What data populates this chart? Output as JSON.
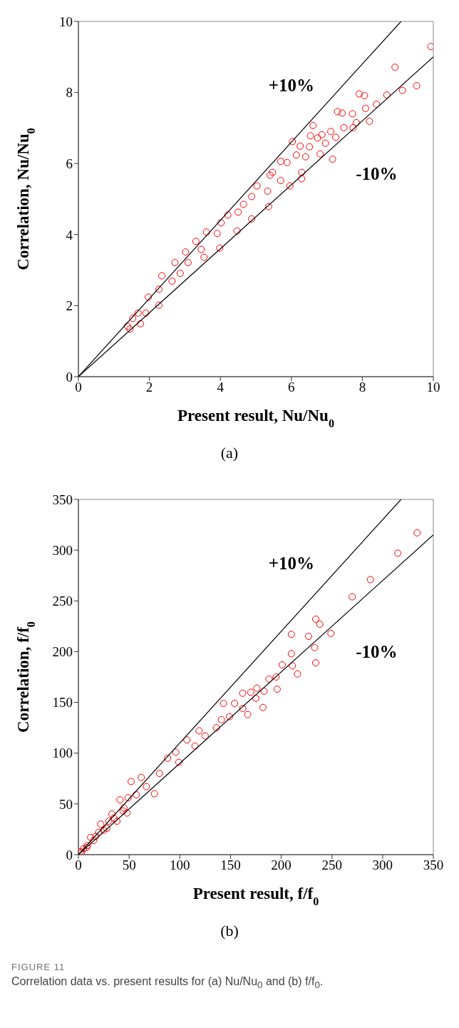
{
  "chart_data": [
    {
      "type": "scatter",
      "xlabel": "Present result, Nu/Nu$_{0}$",
      "ylabel": "Correlation, Nu/Nu$_{0}$",
      "xlim": [
        0,
        10
      ],
      "ylim": [
        0,
        10
      ],
      "xticks": [
        0,
        2,
        4,
        6,
        8,
        10
      ],
      "yticks": [
        0,
        2,
        4,
        6,
        8,
        10
      ],
      "marker": "circle",
      "annotations": [
        "+10%",
        "-10%",
        "(a)"
      ],
      "series": [
        {
          "color": "#ff0000",
          "x": [
            9.93,
            8.92,
            9.53,
            9.13,
            7.91,
            8.06,
            8.69,
            8.4,
            8.09,
            7.3,
            7.43,
            7.72,
            8.2,
            7.83,
            7.48,
            7.74,
            6.61,
            7.11,
            7.25,
            6.54,
            6.86,
            6.74,
            6.96,
            6.03,
            6.25,
            6.51,
            6.81,
            7.16,
            6.14,
            6.4,
            5.7,
            5.88,
            6.29,
            6.29,
            5.96,
            5.47,
            5.4,
            5.7,
            5.03,
            5.33,
            5.36,
            4.88,
            4.65,
            4.88,
            4.5,
            4.21,
            4.47,
            4.02,
            3.91,
            3.98,
            3.61,
            3.31,
            3.46,
            3.54,
            3.02,
            3.09,
            2.72,
            2.87,
            2.64,
            2.35,
            2.27,
            2.27,
            1.97,
            1.9,
            1.68,
            1.53,
            1.45,
            1.38,
            1.75
          ],
          "values": [
            9.29,
            8.71,
            8.19,
            8.06,
            7.96,
            7.91,
            7.93,
            7.67,
            7.55,
            7.46,
            7.42,
            7.4,
            7.19,
            7.15,
            7.01,
            7.01,
            7.07,
            6.9,
            6.74,
            6.78,
            6.81,
            6.72,
            6.57,
            6.62,
            6.49,
            6.47,
            6.27,
            6.12,
            6.24,
            6.19,
            6.06,
            6.03,
            5.75,
            5.57,
            5.37,
            5.75,
            5.67,
            5.52,
            5.37,
            5.22,
            4.79,
            5.07,
            4.85,
            4.44,
            4.63,
            4.55,
            4.1,
            4.33,
            4.03,
            3.62,
            4.07,
            3.81,
            3.58,
            3.36,
            3.51,
            3.21,
            3.21,
            2.91,
            2.69,
            2.84,
            2.46,
            2.01,
            2.24,
            1.79,
            1.79,
            1.64,
            1.34,
            1.42,
            1.49
          ]
        },
        {
          "type": "line",
          "marker": "none",
          "color": "#000000",
          "x": [
            0,
            9.09
          ],
          "values": [
            0,
            10
          ]
        },
        {
          "type": "line",
          "marker": "none",
          "color": "#000000",
          "x": [
            0,
            10
          ],
          "values": [
            0,
            9
          ]
        }
      ]
    },
    {
      "type": "scatter",
      "xlabel": "Present result, f/f$_{0}$",
      "ylabel": "Correlation, f/f$_{0}$",
      "xlim": [
        0,
        350
      ],
      "ylim": [
        0,
        350
      ],
      "xticks": [
        0,
        50,
        100,
        150,
        200,
        250,
        300,
        350
      ],
      "yticks": [
        0,
        50,
        100,
        150,
        200,
        250,
        300,
        350
      ],
      "marker": "circle",
      "annotations": [
        "+10%",
        "-10%",
        "(b)",
        "FIGURE 11",
        "Correlation data vs. present results for (a) Nu/Nu$_{0}$ and (b) f/f$_{0}$."
      ],
      "series": [
        {
          "color": "#ff0000",
          "x": [
            334,
            315,
            288,
            270,
            234,
            238,
            210,
            227,
            249,
            233,
            210,
            234,
            201,
            211,
            216,
            195,
            188,
            196,
            183,
            176,
            162,
            170,
            182,
            175,
            143,
            154,
            162,
            167,
            149,
            141,
            136,
            119,
            125,
            107,
            115,
            96,
            88,
            99,
            75,
            80,
            62,
            52,
            67,
            57,
            49,
            41,
            44,
            33,
            30,
            22,
            20,
            12,
            9,
            3,
            5,
            2,
            8,
            15,
            17,
            25,
            28,
            35,
            38,
            45,
            48
          ],
          "values": [
            317,
            297,
            271,
            254,
            232,
            227,
            217,
            215,
            218,
            204,
            198,
            189,
            187,
            186,
            178,
            175,
            173,
            163,
            161,
            164,
            159,
            160,
            145,
            154,
            149,
            149,
            144,
            138,
            136,
            133,
            125,
            122,
            117,
            113,
            107,
            101,
            95,
            91,
            60,
            80,
            76,
            72,
            67,
            59,
            56,
            54,
            43,
            40,
            33,
            30,
            22,
            17,
            9,
            2,
            6,
            3,
            7,
            14,
            18,
            24,
            26,
            36,
            33,
            46,
            41
          ]
        },
        {
          "type": "line",
          "marker": "none",
          "color": "#000000",
          "x": [
            0,
            318.2
          ],
          "values": [
            0,
            350
          ]
        },
        {
          "type": "line",
          "marker": "none",
          "color": "#000000",
          "x": [
            0,
            350
          ],
          "values": [
            0,
            315
          ]
        }
      ]
    }
  ]
}
